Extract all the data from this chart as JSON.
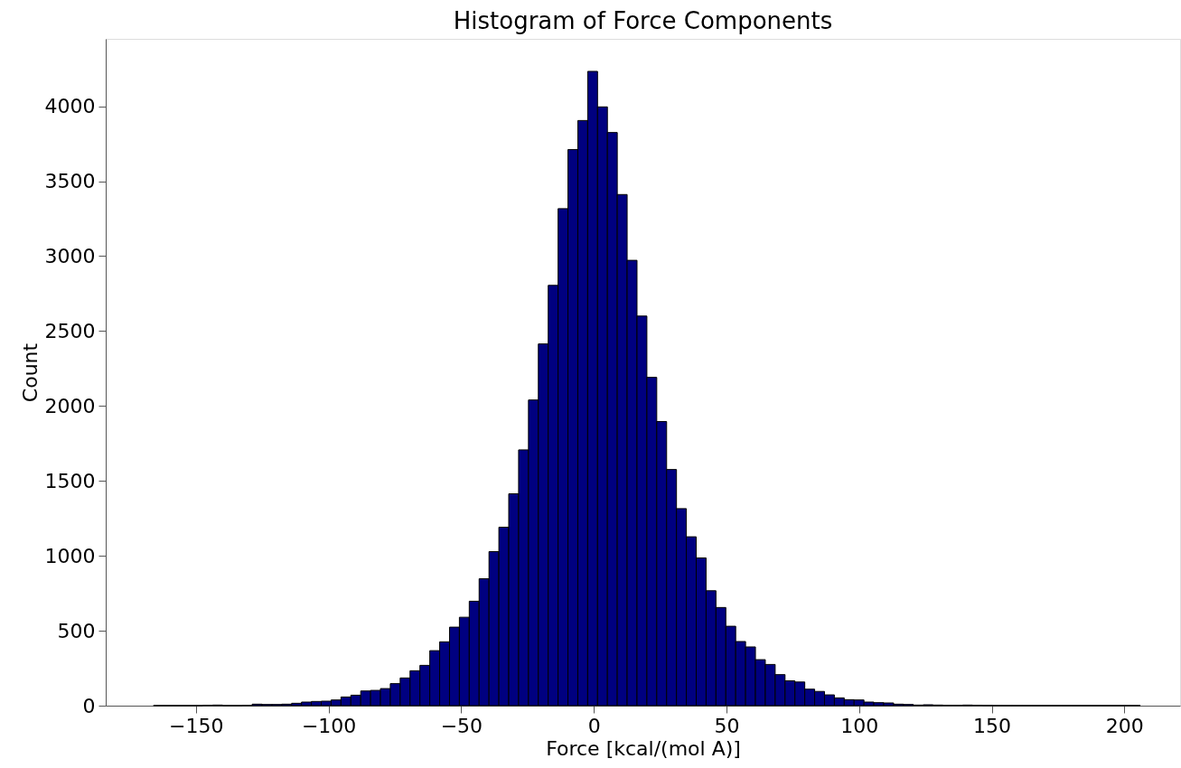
{
  "chart_data": {
    "type": "histogram",
    "title": "Histogram of Force Components",
    "xlabel": "Force [kcal/(mol A)]",
    "ylabel": "Count",
    "color": "#000080",
    "bins": [
      -166,
      -162.28,
      -158.56,
      -154.84,
      -151.12,
      -147.4,
      -143.68,
      -139.96,
      -136.24,
      -132.52,
      -128.8,
      -125.08,
      -121.36,
      -117.64,
      -113.92,
      -110.2,
      -106.48,
      -102.76,
      -99.04,
      -95.32,
      -91.6,
      -87.88,
      -84.16,
      -80.44,
      -76.72,
      -73,
      -69.28,
      -65.56,
      -61.84,
      -58.12,
      -54.4,
      -50.68,
      -46.96,
      -43.24,
      -39.52,
      -35.8,
      -32.08,
      -28.36,
      -24.64,
      -20.92,
      -17.2,
      -13.48,
      -9.76,
      -6.04,
      -2.32,
      1.4,
      5.12,
      8.84,
      12.56,
      16.28,
      20,
      23.72,
      27.44,
      31.16,
      34.88,
      38.6,
      42.32,
      46.04,
      49.76,
      53.48,
      57.2,
      60.92,
      64.64,
      68.36,
      72.08,
      75.8,
      79.52,
      83.24,
      86.96,
      90.68,
      94.4,
      98.12,
      101.84,
      105.56,
      109.28,
      113,
      116.72,
      120.44,
      124.16,
      127.88,
      131.6,
      135.32,
      139.04,
      142.76,
      146.48,
      150.2,
      153.92,
      157.64,
      161.36,
      165.08,
      168.8,
      172.52,
      176.24,
      179.96,
      183.68,
      187.4,
      191.12,
      194.84,
      198.56,
      202.28,
      206
    ],
    "values": [
      1,
      1,
      1,
      1,
      1,
      3,
      4,
      1,
      1,
      2,
      10,
      8,
      8,
      10,
      16,
      24,
      28,
      30,
      38,
      58,
      70,
      98,
      102,
      114,
      147,
      185,
      233,
      269,
      367,
      426,
      524,
      590,
      697,
      847,
      1028,
      1191,
      1414,
      1707,
      2040,
      2414,
      2805,
      3317,
      3711,
      3905,
      4233,
      3996,
      3825,
      3411,
      2972,
      2600,
      2191,
      1896,
      1576,
      1315,
      1127,
      986,
      767,
      655,
      530,
      428,
      392,
      307,
      275,
      207,
      166,
      158,
      110,
      95,
      72,
      52,
      40,
      38,
      24,
      20,
      18,
      10,
      8,
      4,
      6,
      4,
      3,
      3,
      4,
      3,
      2,
      1,
      1,
      1,
      1,
      1,
      1,
      1,
      1,
      1,
      1,
      1,
      1,
      1,
      1,
      1
    ],
    "xlim": [
      -184,
      221
    ],
    "ylim": [
      0,
      4450
    ],
    "xticks": [
      -150,
      -100,
      -50,
      0,
      50,
      100,
      150,
      200
    ],
    "yticks": [
      0,
      500,
      1000,
      1500,
      2000,
      2500,
      3000,
      3500,
      4000
    ],
    "grid": false
  }
}
